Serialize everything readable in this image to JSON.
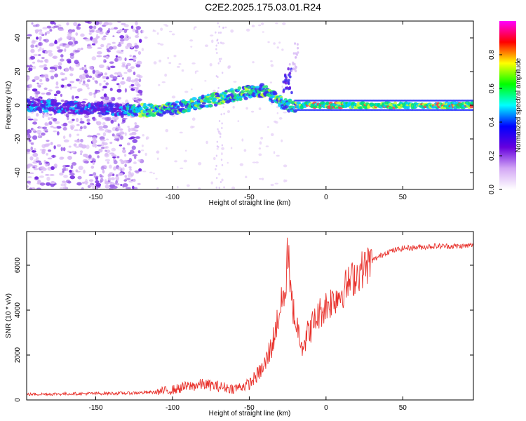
{
  "title": "C2E2.2025.175.03.01.R24",
  "chart_data": [
    {
      "type": "heatmap",
      "name": "spectrogram",
      "xlabel": "Height of straight line (km)",
      "ylabel": "Frequency (Hz)",
      "xlim": [
        -195,
        96
      ],
      "ylim": [
        -50,
        50
      ],
      "x_ticks": [
        "-150",
        "-100",
        "-50",
        "0",
        "50"
      ],
      "y_ticks": [
        "-40",
        "-20",
        "0",
        "20",
        "40"
      ],
      "colorbar": {
        "label": "Normalized spectral amplitude",
        "range": [
          0,
          1
        ],
        "ticks": [
          "0.0",
          "0.2",
          "0.4",
          "0.6",
          "0.8"
        ],
        "colormap": [
          "#ffffff",
          "#d3a7f5",
          "#6600dd",
          "#0000ff",
          "#00ffff",
          "#00ff00",
          "#ffff00",
          "#ff0000",
          "#ff00ff"
        ]
      },
      "ridge": {
        "x": [
          -190,
          -170,
          -150,
          -130,
          -110,
          -100,
          -90,
          -80,
          -70,
          -60,
          -50,
          -40,
          -35,
          -30,
          -25,
          -20,
          -10,
          0,
          10,
          20,
          30,
          40,
          50,
          60,
          70,
          80,
          90
        ],
        "y": [
          0,
          -1,
          -2,
          -3,
          -3,
          -2,
          0,
          2,
          4,
          6,
          8,
          9,
          5,
          2,
          0,
          0,
          0,
          0,
          0,
          0,
          0,
          0,
          0,
          0,
          0,
          0,
          0
        ]
      }
    },
    {
      "type": "line",
      "name": "snr",
      "xlabel": "Height of straight line (km)",
      "ylabel": "SNR (10 * v/v)",
      "xlim": [
        -195,
        96
      ],
      "ylim": [
        0,
        7500
      ],
      "x_ticks": [
        "-150",
        "-100",
        "-50",
        "0",
        "50"
      ],
      "y_ticks": [
        "0",
        "2000",
        "4000",
        "6000"
      ],
      "color": "#e8302a",
      "trend": {
        "x": [
          -195,
          -160,
          -130,
          -110,
          -100,
          -90,
          -80,
          -70,
          -60,
          -50,
          -40,
          -35,
          -30,
          -25,
          -20,
          -15,
          -10,
          -5,
          0,
          10,
          20,
          30,
          40,
          50,
          60,
          70,
          80,
          90,
          96
        ],
        "y": [
          250,
          280,
          300,
          350,
          450,
          600,
          700,
          600,
          500,
          700,
          1500,
          2500,
          4000,
          5500,
          3500,
          2500,
          3200,
          3800,
          4200,
          4800,
          5600,
          6200,
          6600,
          6750,
          6800,
          6850,
          6850,
          6850,
          6900
        ]
      }
    }
  ]
}
